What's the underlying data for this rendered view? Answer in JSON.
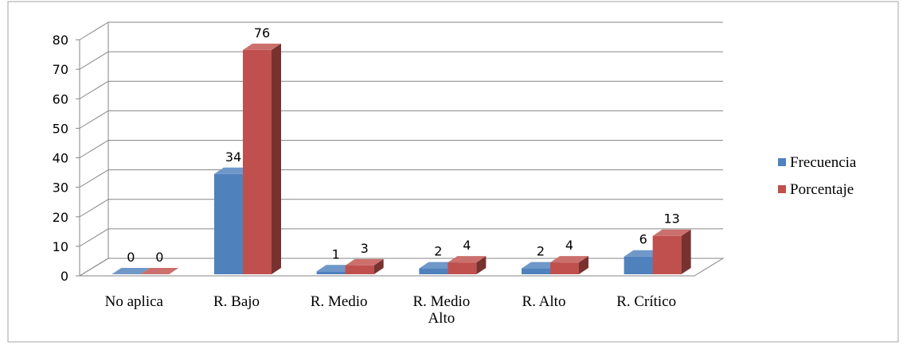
{
  "chart_data": {
    "type": "bar",
    "title": "",
    "xlabel": "",
    "ylabel": "",
    "categories": [
      "No aplica",
      "R. Bajo",
      "R. Medio",
      "R. Medio Alto",
      "R. Alto",
      "R. Crítico"
    ],
    "series": [
      {
        "name": "Frecuencia",
        "values": [
          0,
          34,
          1,
          2,
          2,
          6
        ],
        "color": "#4F81BD"
      },
      {
        "name": "Porcentaje",
        "values": [
          0,
          76,
          3,
          4,
          4,
          13
        ],
        "color": "#C0504D"
      }
    ],
    "ylim": [
      0,
      80
    ],
    "yticks": [
      0,
      10,
      20,
      30,
      40,
      50,
      60,
      70,
      80
    ],
    "grid": true,
    "legend": "right",
    "style": "3d-clustered-column"
  }
}
